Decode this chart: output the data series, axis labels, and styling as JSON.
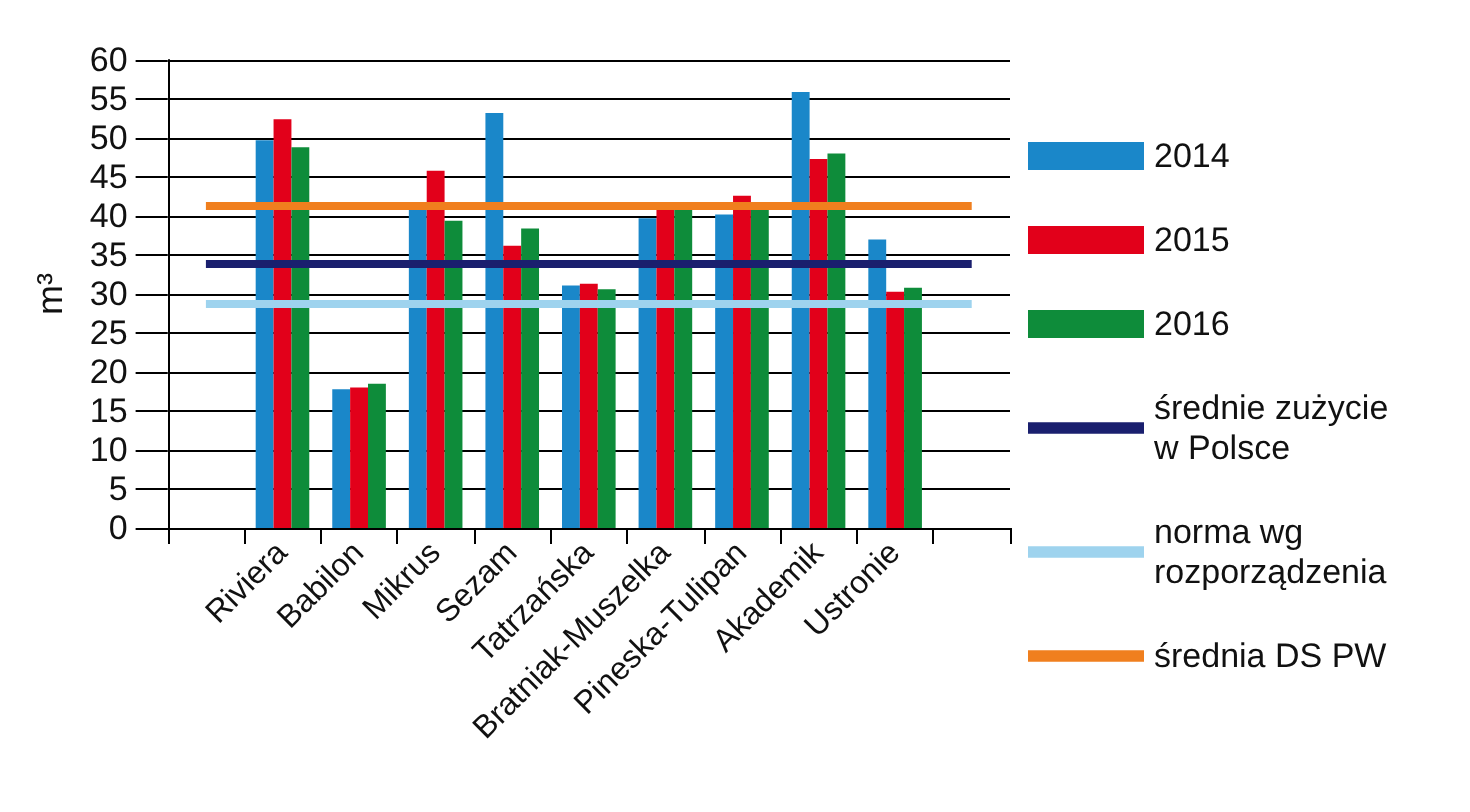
{
  "chart_data": {
    "type": "bar",
    "ylabel": "m³",
    "categories": [
      null,
      "Riviera",
      "Babilon",
      "Mikrus",
      "Sezam",
      "Tatrzańska",
      "Bratniak-Muszelka",
      "Pineska-Tulipan",
      "Akademik",
      "Ustronie",
      null
    ],
    "series": [
      {
        "name": "2014",
        "color": "#1a87c9",
        "values": [
          null,
          49.7,
          17.8,
          41.1,
          53.2,
          31.1,
          39.7,
          40.2,
          55.9,
          37.0,
          null
        ]
      },
      {
        "name": "2015",
        "color": "#e2001a",
        "values": [
          null,
          52.4,
          18.0,
          45.8,
          36.2,
          31.3,
          40.9,
          42.6,
          47.3,
          30.3,
          null
        ]
      },
      {
        "name": "2016",
        "color": "#0e8c3a",
        "values": [
          null,
          48.8,
          18.5,
          39.4,
          38.4,
          30.6,
          40.9,
          40.9,
          48.0,
          30.8,
          null
        ]
      }
    ],
    "ref_lines": [
      {
        "axis": "y",
        "value": 34.0,
        "label": "średnie zużycie w Polsce",
        "color": "#1a1f6e"
      },
      {
        "axis": "y",
        "value": 28.8,
        "label": "norma wg rozporządzenia",
        "color": "#9ed3ee"
      },
      {
        "axis": "y",
        "value": 41.4,
        "label": "średnia DS PW",
        "color": "#f07f1e"
      }
    ],
    "ylim": [
      0,
      60
    ],
    "yticks": [
      0,
      5,
      10,
      15,
      20,
      25,
      30,
      35,
      40,
      45,
      50,
      55,
      60
    ],
    "grid": "y",
    "legend": "right"
  }
}
